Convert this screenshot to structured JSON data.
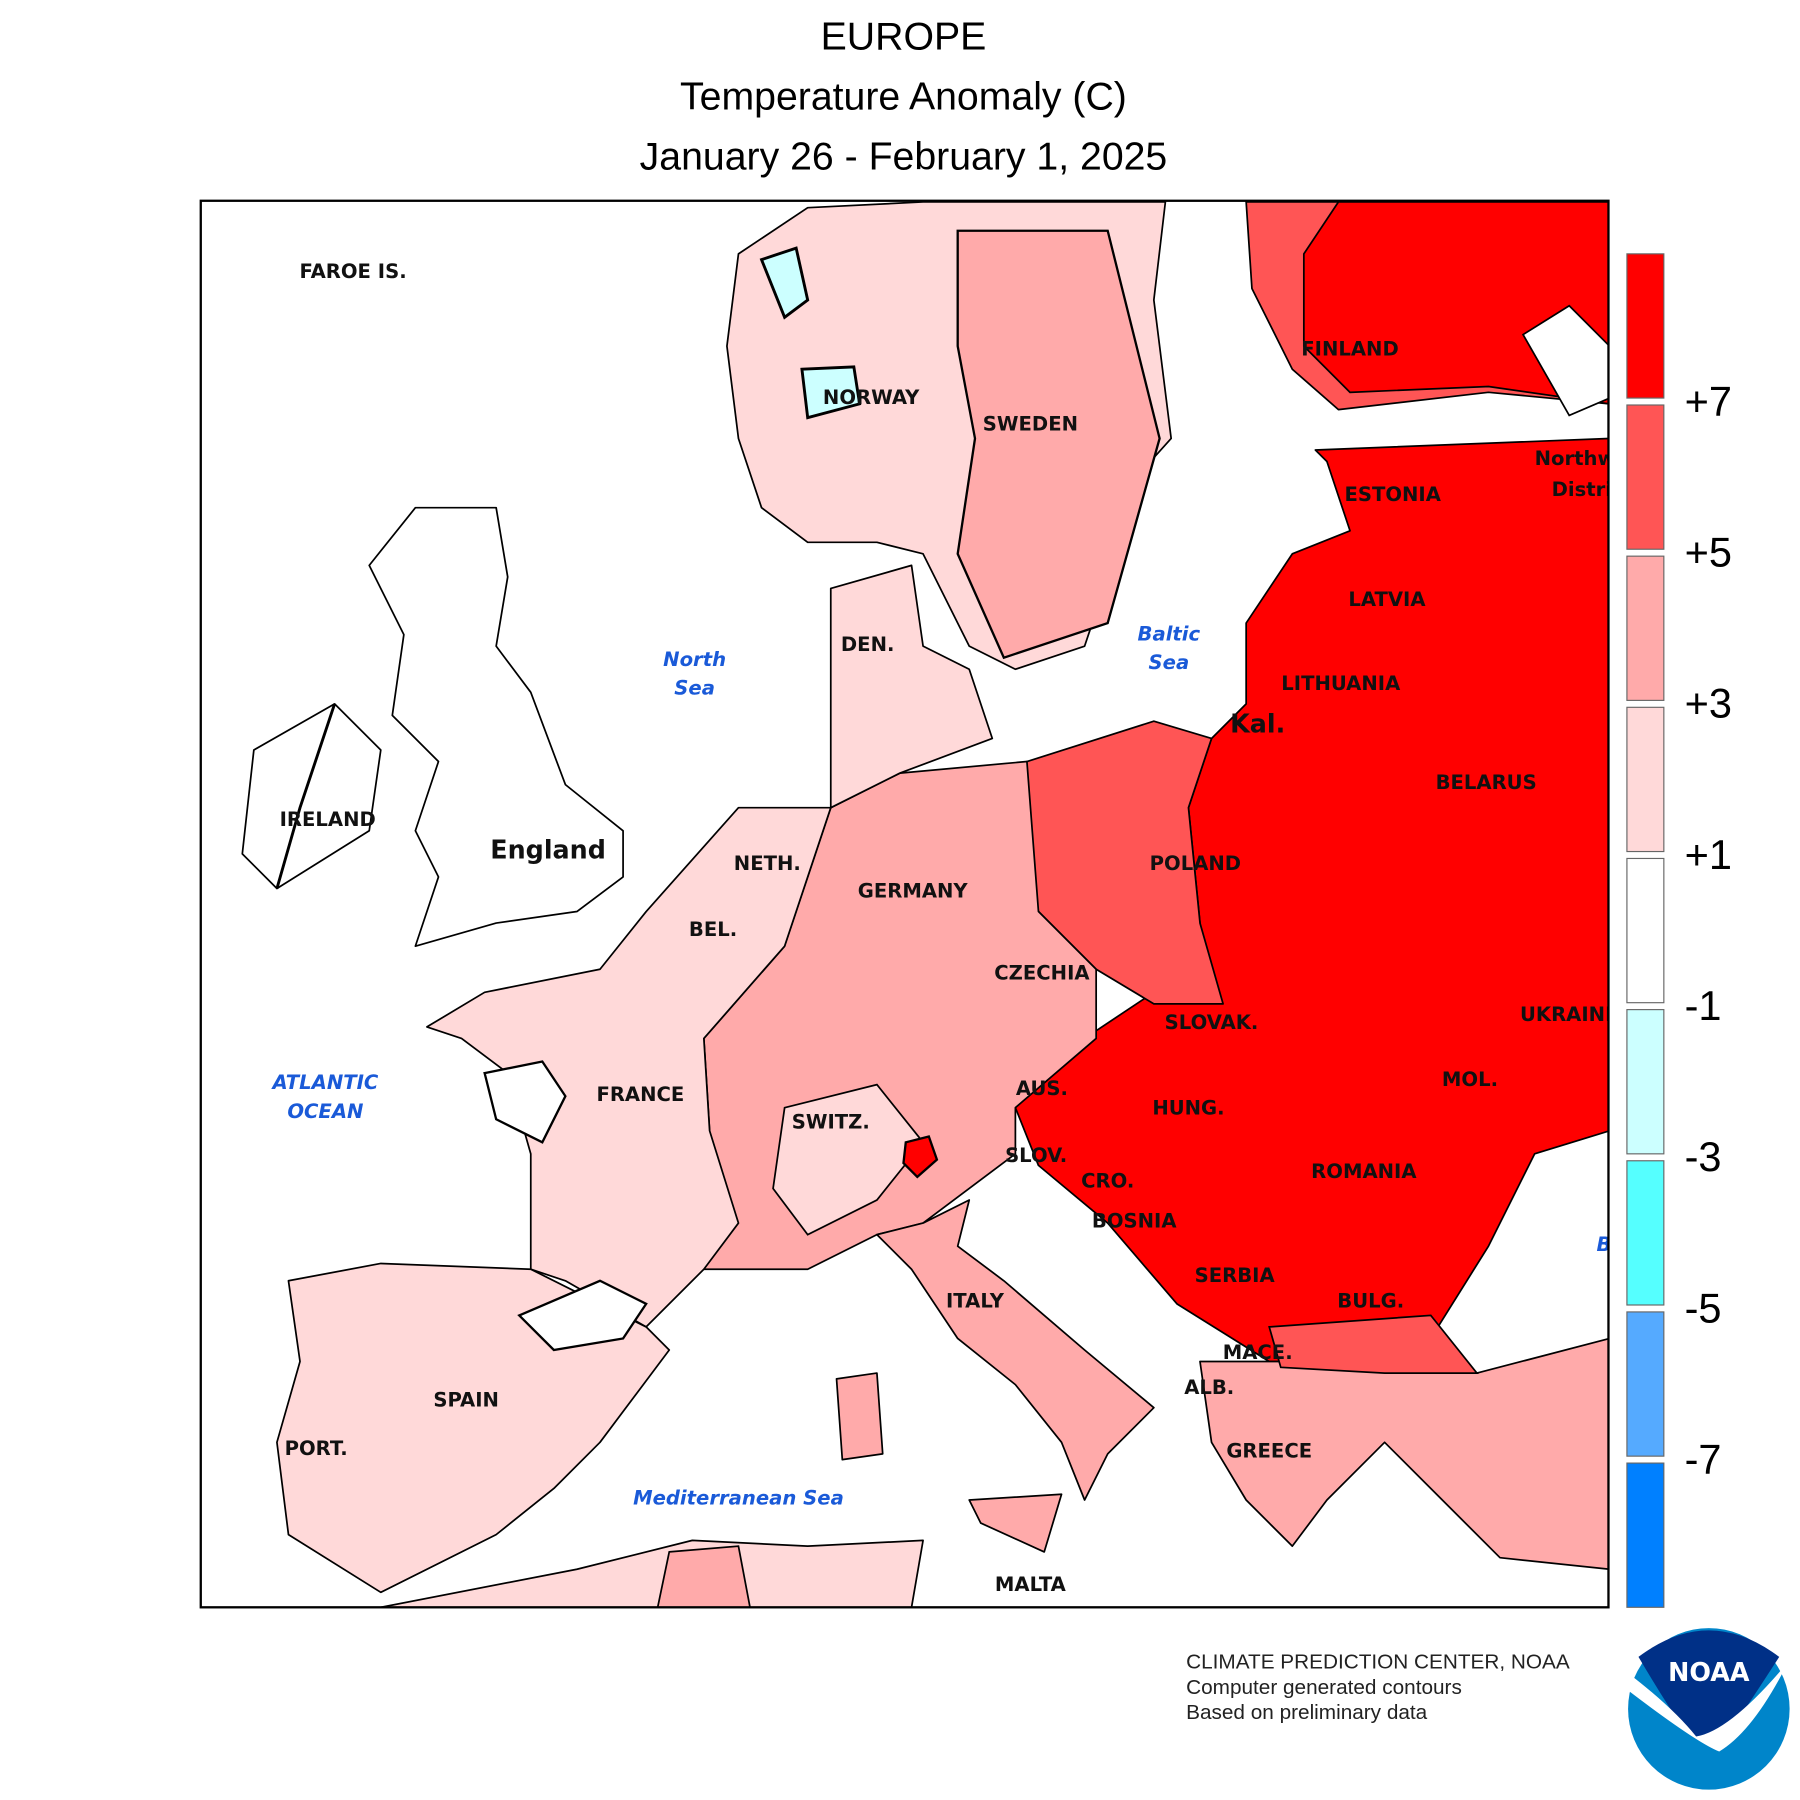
{
  "title": {
    "line1": "EUROPE",
    "line2": "Temperature Anomaly (C)",
    "line3": "January 26 - February 1, 2025"
  },
  "legend": {
    "bins": [
      {
        "color": "#ff0000"
      },
      {
        "color": "#ff5555"
      },
      {
        "color": "#ffaaaa"
      },
      {
        "color": "#ffd9d9"
      },
      {
        "color": "#ffffff"
      },
      {
        "color": "#ccffff"
      },
      {
        "color": "#55ffff"
      },
      {
        "color": "#55aaff"
      },
      {
        "color": "#0080ff"
      }
    ],
    "ticks": [
      "+7",
      "+5",
      "+3",
      "+1",
      "-1",
      "-3",
      "-5",
      "-7"
    ]
  },
  "map": {
    "labels": {
      "faroe": "FAROE IS.",
      "norway": "NORWAY",
      "sweden": "SWEDEN",
      "finland": "FINLAND",
      "northwest1": "Northwest",
      "northwest2": "District",
      "estonia": "ESTONIA",
      "latvia": "LATVIA",
      "lithuania": "LITHUANIA",
      "kal": "Kal.",
      "belarus": "BELARUS",
      "poland": "POLAND",
      "den": "DEN.",
      "ireland": "IRELAND",
      "england": "England",
      "neth": "NETH.",
      "germany": "GERMANY",
      "bel": "BEL.",
      "czechia": "CZECHIA",
      "slovak": "SLOVAK.",
      "ukraine": "UKRAINE",
      "aus": "AUS.",
      "hung": "HUNG.",
      "mol": "MOL.",
      "france": "FRANCE",
      "switz": "SWITZ.",
      "slov": "SLOV.",
      "cro": "CRO.",
      "romania": "ROMANIA",
      "bosnia": "BOSNIA",
      "serbia": "SERBIA",
      "italy": "ITALY",
      "bulg": "BULG.",
      "mace": "MACE.",
      "alb": "ALB.",
      "spain": "SPAIN",
      "port": "PORT.",
      "greece": "GREECE",
      "malta": "MALTA"
    },
    "seas": {
      "north1": "North",
      "north2": "Sea",
      "baltic1": "Baltic",
      "baltic2": "Sea",
      "atlantic1": "ATLANTIC",
      "atlantic2": "OCEAN",
      "med": "Mediterranean Sea",
      "black": "Black Sea"
    }
  },
  "footer": {
    "line1": "CLIMATE PREDICTION CENTER, NOAA",
    "line2": "Computer generated contours",
    "line3": "Based on preliminary data"
  },
  "logo": {
    "text": "NOAA",
    "dark": "#003087",
    "light": "#0085ca"
  }
}
